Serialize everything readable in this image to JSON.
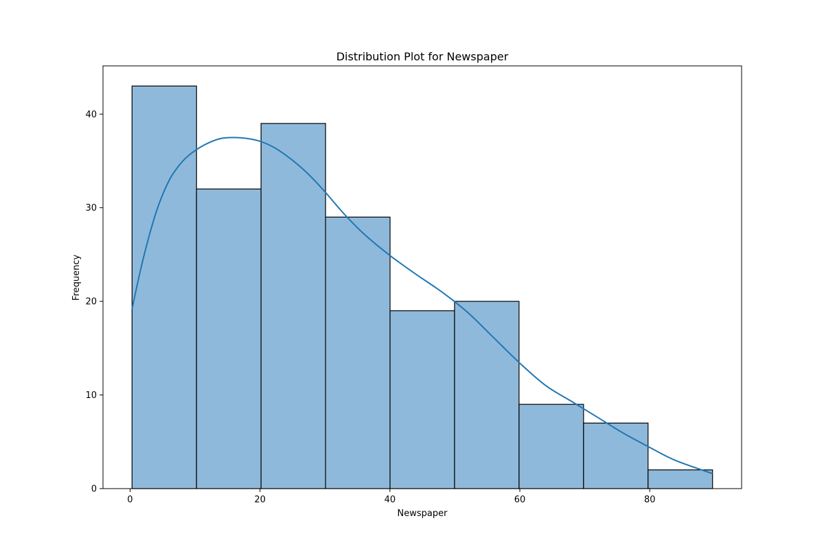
{
  "chart_data": {
    "type": "bar",
    "title": "Distribution Plot for Newspaper",
    "xlabel": "Newspaper",
    "ylabel": "Frequency",
    "bin_edges": [
      0.3,
      10.23,
      20.16,
      30.09,
      40.02,
      49.95,
      59.88,
      69.81,
      79.74,
      89.67
    ],
    "values": [
      43,
      32,
      39,
      29,
      19,
      20,
      9,
      7,
      2
    ],
    "kde_curve": {
      "x": [
        0.3,
        2,
        4,
        6,
        8,
        10,
        12,
        14,
        16,
        18,
        20,
        22,
        24,
        26,
        28,
        30,
        33,
        36,
        40,
        44,
        48,
        52,
        56,
        60,
        64,
        68,
        72,
        76,
        80,
        84,
        89.67
      ],
      "y": [
        19.2,
        24.5,
        29.5,
        32.9,
        34.9,
        36.1,
        36.9,
        37.4,
        37.5,
        37.4,
        37.1,
        36.5,
        35.6,
        34.5,
        33.2,
        31.7,
        29.3,
        27.2,
        24.9,
        22.9,
        21.0,
        18.8,
        16.1,
        13.4,
        11.0,
        9.3,
        7.6,
        5.9,
        4.4,
        3.0,
        1.6
      ]
    },
    "xlim": [
      -4.17,
      94.14
    ],
    "ylim": [
      0,
      45.15
    ],
    "xticks": [
      0,
      20,
      40,
      60,
      80
    ],
    "yticks": [
      0,
      10,
      20,
      30,
      40
    ],
    "grid": false,
    "colors": {
      "bar_fill": "#8fb9da",
      "bar_edge": "#000000",
      "kde_line": "#1f77b4",
      "axes": "#000000"
    }
  }
}
